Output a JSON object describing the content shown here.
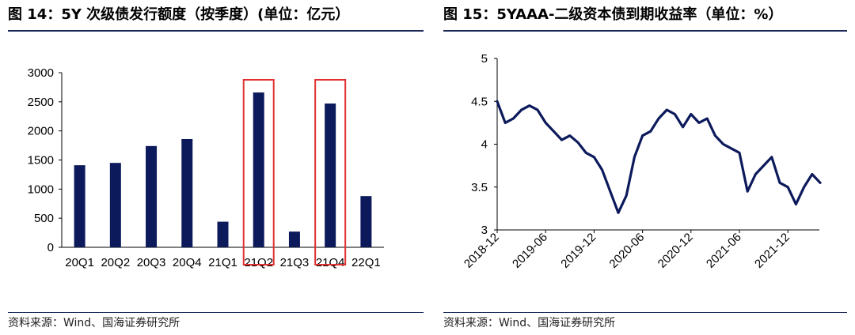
{
  "left_panel": {
    "title": "图 14：5Y 次级债发行额度（按季度）(单位：亿元）",
    "source": "资料来源：Wind、国海证券研究所"
  },
  "right_panel": {
    "title": "图 15：5YAAA-二级资本债到期收益率（单位：%）",
    "source": "资料来源：Wind、国海证券研究所"
  },
  "colors": {
    "bar": "#0c1a5c",
    "line": "#0c1a5c",
    "highlight": "#e03030",
    "rule": "#1b2a59"
  },
  "chart_data": [
    {
      "type": "bar",
      "title": "图 14：5Y 次级债发行额度（按季度）(单位：亿元）",
      "categories": [
        "20Q1",
        "20Q2",
        "20Q3",
        "20Q4",
        "21Q1",
        "21Q2",
        "21Q3",
        "21Q4",
        "22Q1"
      ],
      "values": [
        1410,
        1450,
        1740,
        1860,
        440,
        2660,
        270,
        2470,
        880
      ],
      "highlighted": [
        "21Q2",
        "21Q4"
      ],
      "ylim": [
        0,
        3000
      ],
      "yticks": [
        0,
        500,
        1000,
        1500,
        2000,
        2500,
        3000
      ],
      "xlabel": "",
      "ylabel": "",
      "grid": false
    },
    {
      "type": "line",
      "title": "图 15：5YAAA-二级资本债到期收益率（单位：%）",
      "xticks": [
        "2018-12",
        "2019-06",
        "2019-12",
        "2020-06",
        "2020-12",
        "2021-06",
        "2021-12"
      ],
      "ylim": [
        3,
        5
      ],
      "yticks": [
        "3",
        "3.5",
        "4",
        "4.5",
        "5"
      ],
      "x": [
        "2018-12",
        "2019-01",
        "2019-02",
        "2019-03",
        "2019-04",
        "2019-05",
        "2019-06",
        "2019-07",
        "2019-08",
        "2019-09",
        "2019-10",
        "2019-11",
        "2019-12",
        "2020-01",
        "2020-02",
        "2020-03",
        "2020-04",
        "2020-05",
        "2020-06",
        "2020-07",
        "2020-08",
        "2020-09",
        "2020-10",
        "2020-11",
        "2020-12",
        "2021-01",
        "2021-02",
        "2021-03",
        "2021-04",
        "2021-05",
        "2021-06",
        "2021-07",
        "2021-08",
        "2021-09",
        "2021-10",
        "2021-11",
        "2021-12",
        "2022-01",
        "2022-02",
        "2022-03",
        "2022-04"
      ],
      "values": [
        4.5,
        4.25,
        4.3,
        4.4,
        4.45,
        4.4,
        4.25,
        4.15,
        4.05,
        4.1,
        4.02,
        3.9,
        3.85,
        3.7,
        3.45,
        3.2,
        3.4,
        3.85,
        4.1,
        4.15,
        4.3,
        4.4,
        4.35,
        4.2,
        4.35,
        4.25,
        4.3,
        4.1,
        4.0,
        3.95,
        3.9,
        3.45,
        3.65,
        3.75,
        3.85,
        3.55,
        3.5,
        3.3,
        3.5,
        3.65,
        3.55
      ],
      "xlabel": "",
      "ylabel": "",
      "grid": false
    }
  ]
}
